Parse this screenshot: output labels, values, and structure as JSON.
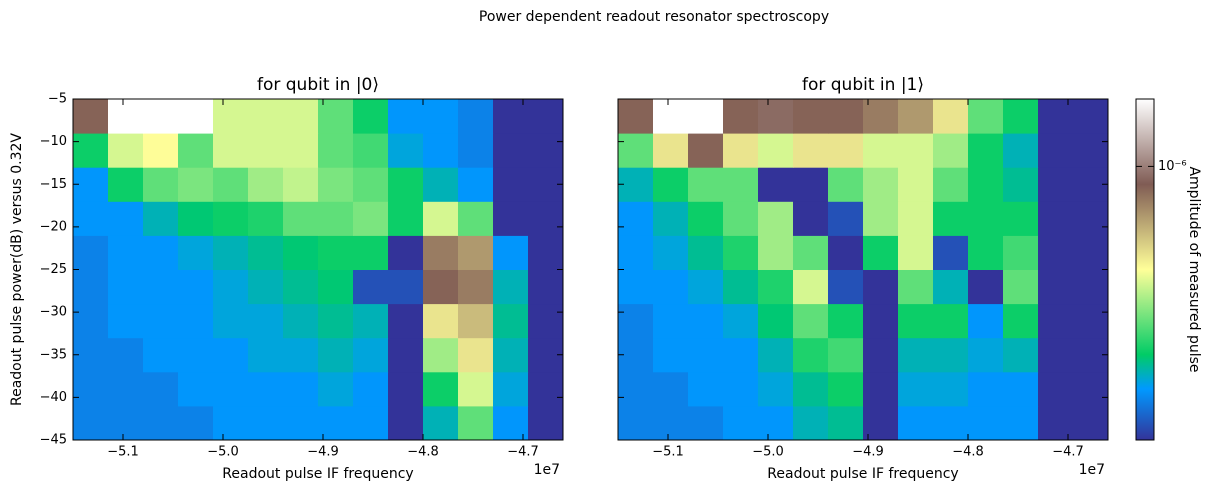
{
  "title": "Power dependent readout resonator spectroscopy",
  "colorbar": {
    "label": "Amplitude of measured pulse",
    "log": true,
    "zlim": [
      6e-08,
      2e-06
    ],
    "ticks": [
      {
        "value": 1e-06,
        "label": "10⁻⁶"
      }
    ],
    "colors": [
      "#333399",
      "#0099ff",
      "#00cc66",
      "#ffff99",
      "#805c54",
      "#ffffff"
    ],
    "color_stops": [
      0,
      0.15,
      0.25,
      0.5,
      0.75,
      1
    ]
  },
  "chart_data": [
    {
      "type": "heatmap",
      "title": "for qubit in |0⟩",
      "xlabel": "Readout pulse IF frequency",
      "ylabel": "Readout pulse power(dB) versus 0.32V",
      "x_offset_label": "1e7",
      "xlim": [
        -5.15,
        -4.66
      ],
      "ylim": [
        -45,
        -5
      ],
      "xticks": [
        {
          "value": -5.1,
          "label": "−5.1"
        },
        {
          "value": -5.0,
          "label": "−5.0"
        },
        {
          "value": -4.9,
          "label": "−4.9"
        },
        {
          "value": -4.8,
          "label": "−4.8"
        },
        {
          "value": -4.7,
          "label": "−4.7"
        }
      ],
      "yticks": [
        {
          "value": -5,
          "label": "−5"
        },
        {
          "value": -10,
          "label": "−10"
        },
        {
          "value": -15,
          "label": "−15"
        },
        {
          "value": -20,
          "label": "−20"
        },
        {
          "value": -25,
          "label": "−25"
        },
        {
          "value": -30,
          "label": "−30"
        },
        {
          "value": -35,
          "label": "−35"
        },
        {
          "value": -40,
          "label": "−40"
        },
        {
          "value": -45,
          "label": "−45"
        }
      ],
      "show_yticklabels": true,
      "x": [
        -5.15,
        -5.115,
        -5.08,
        -5.045,
        -5.01,
        -4.975,
        -4.94,
        -4.905,
        -4.87,
        -4.835,
        -4.8,
        -4.765,
        -4.73,
        -4.695,
        -4.66
      ],
      "y": [
        -45,
        -41,
        -37,
        -33,
        -29,
        -25,
        -21,
        -17,
        -13,
        -9,
        -5
      ],
      "z": [
        [
          9e-08,
          9e-08,
          9e-08,
          9e-08,
          1e-07,
          1e-07,
          1e-07,
          1e-07,
          1e-07,
          6e-08,
          1.2e-07,
          2e-07,
          1e-07,
          6e-08
        ],
        [
          9e-08,
          9e-08,
          9e-08,
          1e-07,
          1e-07,
          1e-07,
          1e-07,
          1.1e-07,
          1e-07,
          6e-08,
          1.5e-07,
          3e-07,
          1.1e-07,
          6e-08
        ],
        [
          9e-08,
          9e-08,
          1e-07,
          1e-07,
          1e-07,
          1.1e-07,
          1.1e-07,
          1.2e-07,
          1.1e-07,
          6e-08,
          2.5e-07,
          4e-07,
          1.2e-07,
          6e-08
        ],
        [
          9e-08,
          1e-07,
          1e-07,
          1e-07,
          1.1e-07,
          1.1e-07,
          1.2e-07,
          1.3e-07,
          1.2e-07,
          6e-08,
          4e-07,
          5e-07,
          1.3e-07,
          6e-08
        ],
        [
          9e-08,
          1e-07,
          1e-07,
          1e-07,
          1.1e-07,
          1.2e-07,
          1.3e-07,
          1.4e-07,
          7e-08,
          7e-08,
          8e-07,
          7e-07,
          1.2e-07,
          6e-08
        ],
        [
          9e-08,
          1e-07,
          1e-07,
          1.1e-07,
          1.2e-07,
          1.3e-07,
          1.4e-07,
          1.5e-07,
          1.5e-07,
          6e-08,
          7e-07,
          6e-07,
          1e-07,
          6e-08
        ],
        [
          1e-07,
          1e-07,
          1.2e-07,
          1.4e-07,
          1.5e-07,
          1.6e-07,
          2e-07,
          2e-07,
          2.2e-07,
          1.5e-07,
          3e-07,
          2e-07,
          6e-08,
          6e-08
        ],
        [
          1e-07,
          1.5e-07,
          2e-07,
          2.2e-07,
          2e-07,
          2.5e-07,
          2.8e-07,
          2.2e-07,
          2e-07,
          1.5e-07,
          1.2e-07,
          1e-07,
          6e-08,
          6e-08
        ],
        [
          1.5e-07,
          3e-07,
          3.5e-07,
          2e-07,
          3e-07,
          3e-07,
          3e-07,
          2e-07,
          1.8e-07,
          1.1e-07,
          1e-07,
          9e-08,
          6e-08,
          6e-08
        ],
        [
          8e-07,
          2e-06,
          2e-06,
          2e-06,
          3e-07,
          3e-07,
          3e-07,
          2e-07,
          1.5e-07,
          1e-07,
          1e-07,
          9e-08,
          6e-08,
          6e-08
        ]
      ]
    },
    {
      "type": "heatmap",
      "title": "for qubit in |1⟩",
      "xlabel": "Readout pulse IF frequency",
      "x_offset_label": "1e7",
      "xlim": [
        -5.15,
        -4.66
      ],
      "ylim": [
        -45,
        -5
      ],
      "xticks": [
        {
          "value": -5.1,
          "label": "−5.1"
        },
        {
          "value": -5.0,
          "label": "−5.0"
        },
        {
          "value": -4.9,
          "label": "−4.9"
        },
        {
          "value": -4.8,
          "label": "−4.8"
        },
        {
          "value": -4.7,
          "label": "−4.7"
        }
      ],
      "yticks": [
        -5,
        -10,
        -15,
        -20,
        -25,
        -30,
        -35,
        -40,
        -45
      ],
      "show_yticklabels": false,
      "x": [
        -5.15,
        -5.115,
        -5.08,
        -5.045,
        -5.01,
        -4.975,
        -4.94,
        -4.905,
        -4.87,
        -4.835,
        -4.8,
        -4.765,
        -4.73,
        -4.695,
        -4.66
      ],
      "y": [
        -45,
        -41,
        -37,
        -33,
        -29,
        -25,
        -21,
        -17,
        -13,
        -9,
        -5
      ],
      "z": [
        [
          9e-08,
          9e-08,
          9e-08,
          1e-07,
          1e-07,
          1.2e-07,
          1.3e-07,
          6e-08,
          1e-07,
          1e-07,
          1e-07,
          1e-07,
          6e-08,
          6e-08
        ],
        [
          9e-08,
          9e-08,
          1e-07,
          1e-07,
          1.1e-07,
          1.3e-07,
          1.5e-07,
          6e-08,
          1.1e-07,
          1.1e-07,
          1e-07,
          1e-07,
          6e-08,
          6e-08
        ],
        [
          9e-08,
          1e-07,
          1e-07,
          1e-07,
          1.2e-07,
          1.6e-07,
          1.8e-07,
          6e-08,
          1.2e-07,
          1.2e-07,
          1.1e-07,
          1.2e-07,
          6e-08,
          6e-08
        ],
        [
          9e-08,
          1e-07,
          1e-07,
          1.1e-07,
          1.4e-07,
          2e-07,
          1.5e-07,
          6e-08,
          1.5e-07,
          1.5e-07,
          1e-07,
          1.5e-07,
          6e-08,
          6e-08
        ],
        [
          1e-07,
          1e-07,
          1.1e-07,
          1.3e-07,
          1.6e-07,
          3e-07,
          7e-08,
          6e-08,
          2e-07,
          1.2e-07,
          6e-08,
          2e-07,
          6e-08,
          6e-08
        ],
        [
          1e-07,
          1.1e-07,
          1.3e-07,
          1.6e-07,
          2.5e-07,
          2e-07,
          6e-08,
          1.5e-07,
          3e-07,
          7e-08,
          1.5e-07,
          1.8e-07,
          6e-08,
          6e-08
        ],
        [
          1e-07,
          1.2e-07,
          1.5e-07,
          2e-07,
          2.5e-07,
          6e-08,
          7e-08,
          2.5e-07,
          3e-07,
          1.5e-07,
          1.5e-07,
          1.5e-07,
          6e-08,
          6e-08
        ],
        [
          1.2e-07,
          1.5e-07,
          2e-07,
          2e-07,
          6e-08,
          6e-08,
          2e-07,
          2.5e-07,
          3e-07,
          2e-07,
          1.5e-07,
          1.3e-07,
          6e-08,
          6e-08
        ],
        [
          2e-07,
          4e-07,
          8e-07,
          4e-07,
          3e-07,
          4e-07,
          4e-07,
          3e-07,
          3e-07,
          2.5e-07,
          1.5e-07,
          1.2e-07,
          6e-08,
          6e-08
        ],
        [
          8e-07,
          2e-06,
          2e-06,
          8e-07,
          9e-07,
          8e-07,
          8e-07,
          7e-07,
          6e-07,
          4e-07,
          2e-07,
          1.5e-07,
          6e-08,
          6e-08
        ]
      ]
    }
  ]
}
